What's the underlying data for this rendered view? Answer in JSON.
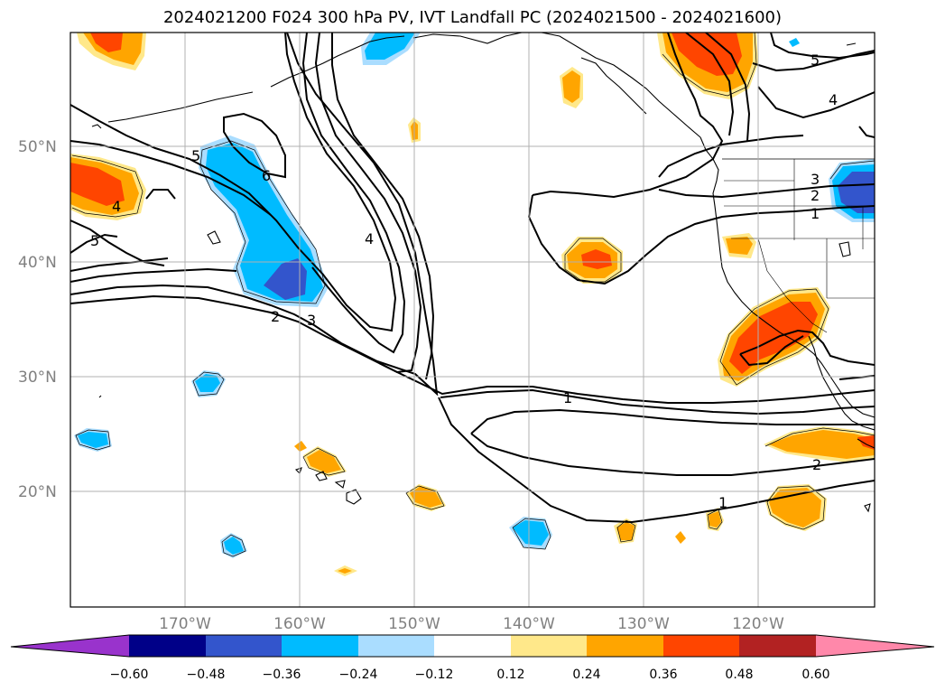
{
  "title": "2024021200 F024 300 hPa PV, IVT Landfall PC (2024021500 - 2024021600)",
  "map": {
    "lon_ticks": [
      "170°W",
      "160°W",
      "150°W",
      "140°W",
      "130°W",
      "120°W"
    ],
    "lat_ticks": [
      "50°N",
      "40°N",
      "30°N",
      "20°N"
    ],
    "contour_labels": [
      "5",
      "6",
      "4",
      "5",
      "4",
      "3",
      "2",
      "4",
      "3",
      "2",
      "1",
      "5",
      "4",
      "1",
      "2",
      "1"
    ]
  },
  "colorbar": {
    "ticks": [
      "−0.60",
      "−0.48",
      "−0.36",
      "−0.24",
      "−0.12",
      "0.12",
      "0.24",
      "0.36",
      "0.48",
      "0.60"
    ],
    "colors": [
      "#9933cc",
      "#000088",
      "#3355cc",
      "#00bbff",
      "#aaddff",
      "#ffffff",
      "#ffe88a",
      "#ffa500",
      "#ff4500",
      "#b22222",
      "#ff88aa"
    ]
  },
  "colors": {
    "neg_strong": "#3355cc",
    "neg_mid": "#00bbff",
    "neg_weak": "#aaddff",
    "pos_weak": "#ffe88a",
    "pos_mid": "#ffa500",
    "pos_strong": "#ff4500"
  }
}
